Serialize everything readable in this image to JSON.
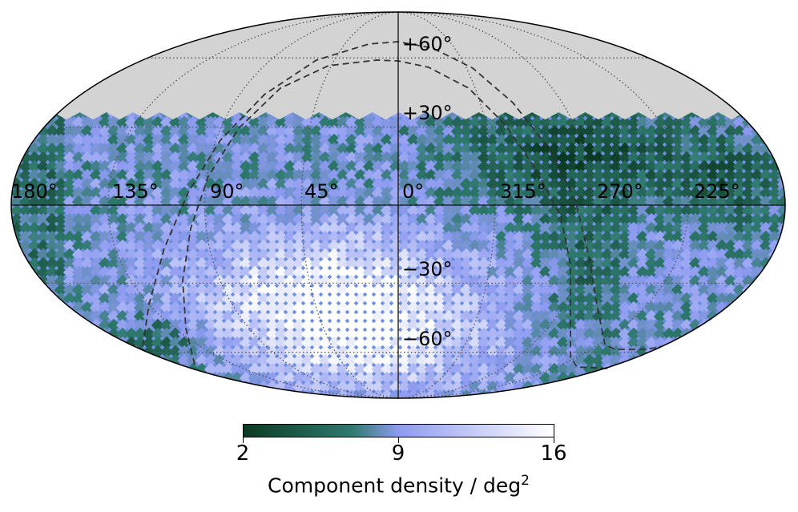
{
  "map": {
    "projection": "Mollweide (all-sky)",
    "masked_region": "latitude above ~+35° shown in grey (no data)",
    "lon_labels": [
      "180°",
      "135°",
      "90°",
      "45°",
      "0°",
      "315°",
      "270°",
      "225°"
    ],
    "lat_labels": [
      "+60°",
      "+30°",
      "−30°",
      "−60°"
    ],
    "colors": {
      "masked": "#d3d3d3",
      "graticule": "#555555",
      "outline": "#000000",
      "dashed_curves": "#333333"
    }
  },
  "colorbar": {
    "min_label": "2",
    "mid_label": "9",
    "max_label": "16",
    "title": "Component density / deg",
    "title_superscript": "2",
    "stops": [
      "#0b3a22",
      "#2f7a6f",
      "#8e9bf0",
      "#ffffff"
    ]
  }
}
